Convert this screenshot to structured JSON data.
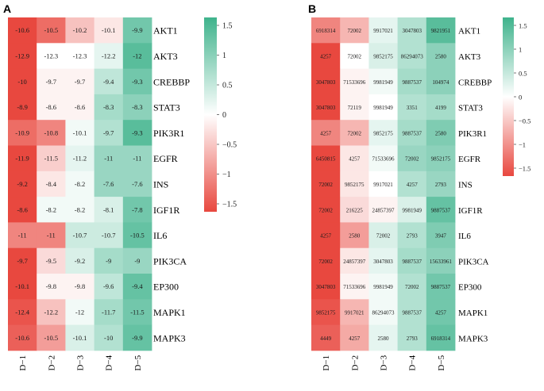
{
  "chart_data": [
    {
      "type": "heatmap",
      "panel_label": "A",
      "columns": [
        "D−1",
        "D−2",
        "D−3",
        "D−4",
        "D−5"
      ],
      "rows": [
        "AKT1",
        "AKT3",
        "CREBBP",
        "STAT3",
        "PIK3R1",
        "EGFR",
        "INS",
        "IGF1R",
        "IL6",
        "PIK3CA",
        "EP300",
        "MAPK1",
        "MAPK3"
      ],
      "values": [
        [
          -10.6,
          -10.5,
          -10.2,
          -10.1,
          -9.9
        ],
        [
          -12.9,
          -12.3,
          -12.3,
          -12.2,
          -12
        ],
        [
          -10,
          -9.7,
          -9.7,
          -9.4,
          -9.3
        ],
        [
          -8.9,
          -8.6,
          -8.6,
          -8.3,
          -8.3
        ],
        [
          -10.9,
          -10.8,
          -10.1,
          -9.7,
          -9.3
        ],
        [
          -11.9,
          -11.5,
          -11.2,
          -11,
          -11
        ],
        [
          -9.2,
          -8.4,
          -8.2,
          -7.6,
          -7.6
        ],
        [
          -8.6,
          -8.2,
          -8.2,
          -8.1,
          -7.8
        ],
        [
          -11,
          -11,
          -10.7,
          -10.7,
          -10.5
        ],
        [
          -9.7,
          -9.5,
          -9.2,
          -9,
          -9
        ],
        [
          -10.1,
          -9.8,
          -9.8,
          -9.6,
          -9.4
        ],
        [
          -12.4,
          -12.2,
          -12,
          -11.7,
          -11.5
        ],
        [
          -10.6,
          -10.5,
          -10.1,
          -10,
          -9.9
        ]
      ],
      "colors": [
        [
          -1.5,
          -1.2,
          -0.5,
          -0.2,
          1.1
        ],
        [
          -1.6,
          0.0,
          0.0,
          0.2,
          1.3
        ],
        [
          -1.5,
          -0.1,
          -0.1,
          0.5,
          1.1
        ],
        [
          -1.5,
          -0.1,
          -0.1,
          0.7,
          0.9
        ],
        [
          -1.2,
          -1.0,
          0.1,
          0.6,
          1.3
        ],
        [
          -1.5,
          -0.4,
          0.2,
          0.8,
          0.8
        ],
        [
          -1.6,
          -0.2,
          0.1,
          0.8,
          0.8
        ],
        [
          -1.6,
          0.1,
          0.1,
          0.3,
          1.1
        ],
        [
          -1.0,
          -1.0,
          0.4,
          0.4,
          1.2
        ],
        [
          -1.5,
          -0.3,
          0.3,
          0.7,
          0.8
        ],
        [
          -1.5,
          -0.1,
          -0.1,
          0.5,
          1.2
        ],
        [
          -1.4,
          -0.5,
          0.1,
          0.7,
          1.1
        ],
        [
          -1.3,
          -0.8,
          0.3,
          0.6,
          1.2
        ]
      ],
      "colorbar": {
        "min": -1.5,
        "max": 1.5,
        "ticks": [
          "1.5",
          "1",
          "0.5",
          "0",
          "−0.5",
          "−1",
          "−1.5"
        ]
      }
    },
    {
      "type": "heatmap",
      "panel_label": "B",
      "columns": [
        "D−1",
        "D−2",
        "D−3",
        "D−4",
        "D−5"
      ],
      "rows": [
        "AKT1",
        "AKT3",
        "CREBBP",
        "STAT3",
        "PIK3R1",
        "EGFR",
        "INS",
        "IGF1R",
        "IL6",
        "PIK3CA",
        "EP300",
        "MAPK1",
        "MAPK3"
      ],
      "values": [
        [
          "6918314",
          "72002",
          "9917021",
          "3047803",
          "9821951"
        ],
        [
          "4257",
          "72002",
          "9852175",
          "86294073",
          "2580"
        ],
        [
          "3047803",
          "71533696",
          "9981949",
          "9887537",
          "104974"
        ],
        [
          "3047803",
          "72119",
          "9981949",
          "3351",
          "4199"
        ],
        [
          "4257",
          "72002",
          "9852175",
          "9887537",
          "2580"
        ],
        [
          "6450815",
          "4257",
          "71533696",
          "72002",
          "9852175"
        ],
        [
          "72002",
          "9852175",
          "9917021",
          "4257",
          "2793"
        ],
        [
          "72002",
          "216225",
          "24857397",
          "9981949",
          "9887537"
        ],
        [
          "4257",
          "2580",
          "72002",
          "2793",
          "3947"
        ],
        [
          "72002",
          "24857397",
          "3047803",
          "9887537",
          "15633961"
        ],
        [
          "3047803",
          "71533696",
          "9981949",
          "72002",
          "9887537"
        ],
        [
          "9852175",
          "9917021",
          "86294073",
          "9887537",
          "4257"
        ],
        [
          "4449",
          "4257",
          "2580",
          "2793",
          "6918314"
        ]
      ],
      "colors": [
        [
          -1.0,
          -0.6,
          0.2,
          0.6,
          1.3
        ],
        [
          -1.6,
          0.0,
          0.3,
          0.6,
          0.9
        ],
        [
          -1.5,
          -0.1,
          0.1,
          0.7,
          0.9
        ],
        [
          -1.5,
          -0.1,
          0.0,
          0.6,
          0.7
        ],
        [
          -1.0,
          -0.6,
          0.2,
          0.7,
          1.0
        ],
        [
          -1.5,
          -0.2,
          0.1,
          0.8,
          0.9
        ],
        [
          -1.6,
          -0.2,
          0.0,
          0.6,
          0.8
        ],
        [
          -1.5,
          -0.3,
          -0.1,
          0.3,
          1.2
        ],
        [
          -1.6,
          -0.8,
          0.3,
          0.6,
          1.0
        ],
        [
          -1.5,
          -0.2,
          0.2,
          0.7,
          0.9
        ],
        [
          -1.5,
          -0.1,
          0.1,
          0.6,
          1.1
        ],
        [
          -1.4,
          -0.6,
          0.1,
          0.6,
          1.1
        ],
        [
          -1.3,
          -0.7,
          0.2,
          0.6,
          1.2
        ]
      ],
      "colorbar": {
        "min": -1.5,
        "max": 1.5,
        "ticks": [
          "1.5",
          "1",
          "0.5",
          "0",
          "−0.5",
          "−1",
          "−1.5"
        ]
      }
    }
  ],
  "palette": {
    "low": "#e8483f",
    "mid": "#ffffff",
    "high": "#3fb38c"
  }
}
